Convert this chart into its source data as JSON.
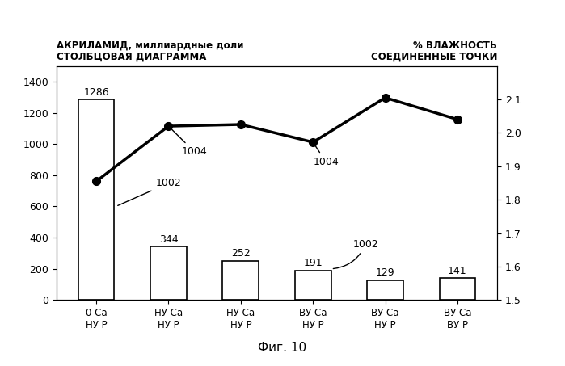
{
  "categories": [
    "0 Ca\nНУ Р",
    "НУ Ca\nНУ Р",
    "НУ Ca\nНУ Р",
    "ВУ Ca\nНУ Р",
    "ВУ Ca\nНУ Р",
    "ВУ Ca\nВУ Р"
  ],
  "bar_values": [
    1286,
    344,
    252,
    191,
    129,
    141
  ],
  "bar_color": "#ffffff",
  "bar_edgecolor": "#000000",
  "line_values": [
    1.855,
    2.02,
    2.025,
    1.972,
    2.105,
    2.04
  ],
  "bar_labels": [
    "1286",
    "344",
    "252",
    "191",
    "129",
    "141"
  ],
  "left_title1": "АКРИЛАМИД, миллиардные доли",
  "left_title2": "СТОЛБЦОВАЯ ДИАГРАММА",
  "right_title1": "% ВЛАЖНОСТЬ",
  "right_title2": "СОЕДИНЕННЫЕ ТОЧКИ",
  "ylim_left": [
    0,
    1500
  ],
  "ylim_right": [
    1.5,
    2.2
  ],
  "yticks_left": [
    0,
    200,
    400,
    600,
    800,
    1000,
    1200,
    1400
  ],
  "yticks_right": [
    1.5,
    1.6,
    1.7,
    1.8,
    1.9,
    2.0,
    2.1
  ],
  "figure_caption": "Фиг. 10"
}
